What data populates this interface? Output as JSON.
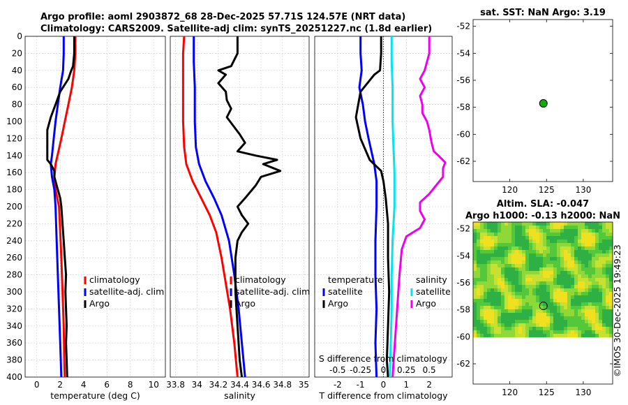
{
  "header": {
    "line1": "Argo profile: aoml 2903872_68 28-Dec-2025 57.71S 124.57E (NRT data)",
    "line2": "Climatology: CARS2009. Satellite-adj clim: synTS_20251227.nc (1.8d earlier)"
  },
  "sst_title": "sat. SST: NaN Argo: 3.19",
  "sla_title1": "Altim. SLA: -0.047",
  "sla_title2": "Argo h1000: -0.13 h2000: NaN",
  "watermark": "©IMOS 30-Dec-2025 19:49:23",
  "colors": {
    "clim": "#ff0000",
    "sat": "#0000ff",
    "argo": "#000000",
    "sat_s": "#00e5ee",
    "argo_s": "#ee00ee"
  },
  "icons": {
    "legend_mark": "short-vertical-line",
    "float_marker": "green-circle"
  },
  "chart_data": [
    {
      "type": "line",
      "name": "temperature",
      "xlabel": "temperature (deg C)",
      "ylabel": "",
      "xlim": [
        -1,
        11
      ],
      "ylim": [
        400,
        0
      ],
      "xticks": [
        0,
        2,
        4,
        6,
        8,
        10
      ],
      "yticks": [
        0,
        20,
        40,
        60,
        80,
        100,
        120,
        140,
        160,
        180,
        200,
        220,
        240,
        260,
        280,
        300,
        320,
        340,
        360,
        380,
        400
      ],
      "legend": [
        "climatology",
        "satellite-adj. clim",
        "Argo"
      ],
      "legend_position": "bottom-right",
      "series": [
        {
          "name": "climatology",
          "color": "#ff0000",
          "points": [
            [
              3.3,
              0
            ],
            [
              3.3,
              20
            ],
            [
              3.2,
              40
            ],
            [
              3.0,
              60
            ],
            [
              2.7,
              80
            ],
            [
              2.4,
              100
            ],
            [
              2.1,
              120
            ],
            [
              1.6,
              150
            ],
            [
              1.5,
              165
            ],
            [
              1.6,
              180
            ],
            [
              1.9,
              200
            ],
            [
              2.0,
              230
            ],
            [
              2.1,
              260
            ],
            [
              2.2,
              300
            ],
            [
              2.3,
              340
            ],
            [
              2.35,
              380
            ],
            [
              2.4,
              400
            ]
          ]
        },
        {
          "name": "satellite-adj. clim",
          "color": "#0000ff",
          "points": [
            [
              2.3,
              0
            ],
            [
              2.3,
              20
            ],
            [
              2.25,
              40
            ],
            [
              2.0,
              60
            ],
            [
              1.8,
              80
            ],
            [
              1.6,
              100
            ],
            [
              1.45,
              120
            ],
            [
              1.3,
              140
            ],
            [
              1.2,
              150
            ],
            [
              1.3,
              165
            ],
            [
              1.5,
              180
            ],
            [
              1.6,
              200
            ],
            [
              1.7,
              240
            ],
            [
              1.8,
              280
            ],
            [
              1.9,
              320
            ],
            [
              2.0,
              360
            ],
            [
              2.1,
              400
            ]
          ]
        },
        {
          "name": "Argo",
          "color": "#000000",
          "points": [
            [
              3.2,
              0
            ],
            [
              3.2,
              20
            ],
            [
              3.1,
              35
            ],
            [
              2.9,
              42
            ],
            [
              2.7,
              50
            ],
            [
              2.0,
              65
            ],
            [
              1.6,
              80
            ],
            [
              1.2,
              95
            ],
            [
              0.9,
              110
            ],
            [
              0.9,
              130
            ],
            [
              0.9,
              145
            ],
            [
              1.2,
              150
            ],
            [
              1.5,
              158
            ],
            [
              1.5,
              165
            ],
            [
              1.7,
              175
            ],
            [
              2.0,
              190
            ],
            [
              2.1,
              200
            ],
            [
              2.2,
              220
            ],
            [
              2.3,
              240
            ],
            [
              2.4,
              260
            ],
            [
              2.5,
              280
            ],
            [
              2.45,
              300
            ],
            [
              2.5,
              320
            ],
            [
              2.55,
              340
            ],
            [
              2.5,
              360
            ],
            [
              2.55,
              380
            ],
            [
              2.6,
              400
            ]
          ]
        }
      ]
    },
    {
      "type": "line",
      "name": "salinity",
      "xlabel": "salinity",
      "xlim": [
        33.75,
        35.05
      ],
      "ylim": [
        400,
        0
      ],
      "xticks": [
        33.8,
        34,
        34.2,
        34.4,
        34.6,
        34.8,
        35
      ],
      "xticklabels": [
        "33.8",
        "34",
        "34.2",
        "34.4",
        "34.6",
        "34.8",
        "35"
      ],
      "legend": [
        "climatology",
        "satellite-adj. clim",
        "Argo"
      ],
      "legend_position": "bottom-right",
      "series": [
        {
          "name": "climatology",
          "color": "#ff0000",
          "points": [
            [
              33.88,
              0
            ],
            [
              33.87,
              20
            ],
            [
              33.87,
              60
            ],
            [
              33.87,
              100
            ],
            [
              33.88,
              130
            ],
            [
              33.9,
              150
            ],
            [
              33.96,
              170
            ],
            [
              34.04,
              190
            ],
            [
              34.12,
              210
            ],
            [
              34.18,
              230
            ],
            [
              34.23,
              260
            ],
            [
              34.27,
              290
            ],
            [
              34.31,
              320
            ],
            [
              34.35,
              360
            ],
            [
              34.38,
              400
            ]
          ]
        },
        {
          "name": "satellite-adj. clim",
          "color": "#0000ff",
          "points": [
            [
              33.97,
              0
            ],
            [
              33.97,
              30
            ],
            [
              33.98,
              60
            ],
            [
              33.98,
              100
            ],
            [
              33.99,
              130
            ],
            [
              34.02,
              150
            ],
            [
              34.08,
              170
            ],
            [
              34.16,
              190
            ],
            [
              34.23,
              210
            ],
            [
              34.3,
              240
            ],
            [
              34.35,
              280
            ],
            [
              34.39,
              320
            ],
            [
              34.42,
              360
            ],
            [
              34.45,
              400
            ]
          ]
        },
        {
          "name": "Argo",
          "color": "#000000",
          "points": [
            [
              34.38,
              0
            ],
            [
              34.38,
              20
            ],
            [
              34.32,
              35
            ],
            [
              34.2,
              40
            ],
            [
              34.27,
              45
            ],
            [
              34.2,
              55
            ],
            [
              34.27,
              65
            ],
            [
              34.28,
              75
            ],
            [
              34.32,
              85
            ],
            [
              34.28,
              95
            ],
            [
              34.34,
              105
            ],
            [
              34.4,
              115
            ],
            [
              34.45,
              125
            ],
            [
              34.38,
              135
            ],
            [
              34.55,
              140
            ],
            [
              34.75,
              145
            ],
            [
              34.62,
              150
            ],
            [
              34.78,
              158
            ],
            [
              34.6,
              165
            ],
            [
              34.55,
              175
            ],
            [
              34.45,
              190
            ],
            [
              34.38,
              200
            ],
            [
              34.42,
              210
            ],
            [
              34.48,
              220
            ],
            [
              34.42,
              230
            ],
            [
              34.38,
              240
            ],
            [
              34.36,
              260
            ],
            [
              34.36,
              300
            ],
            [
              34.38,
              340
            ],
            [
              34.4,
              380
            ],
            [
              34.42,
              400
            ]
          ]
        }
      ]
    },
    {
      "type": "line",
      "name": "difference",
      "xlabel": "T difference from climatology",
      "xlabel_top": "S difference from climatology",
      "xlim": [
        -3,
        3
      ],
      "ylim": [
        400,
        0
      ],
      "xticks": [
        -2,
        -1,
        0,
        1,
        2
      ],
      "s_ticklabels": [
        "-0.5",
        "-0.25",
        "0",
        "0.25",
        "0.5"
      ],
      "s_scale": 4,
      "legend_left": {
        "title": "temperature",
        "items": [
          "satellite",
          "Argo"
        ]
      },
      "legend_right": {
        "title": "salinity",
        "items": [
          "satellite",
          "Argo"
        ]
      },
      "series": [
        {
          "name": "satellite T",
          "color": "#0000ff",
          "points": [
            [
              -1.0,
              0
            ],
            [
              -1.0,
              20
            ],
            [
              -0.95,
              40
            ],
            [
              -1.05,
              60
            ],
            [
              -0.9,
              80
            ],
            [
              -0.8,
              100
            ],
            [
              -0.65,
              120
            ],
            [
              -0.4,
              150
            ],
            [
              -0.3,
              170
            ],
            [
              -0.3,
              200
            ],
            [
              -0.35,
              240
            ],
            [
              -0.35,
              280
            ],
            [
              -0.3,
              320
            ],
            [
              -0.35,
              360
            ],
            [
              -0.3,
              400
            ]
          ]
        },
        {
          "name": "Argo T",
          "color": "#000000",
          "points": [
            [
              -0.1,
              0
            ],
            [
              -0.1,
              20
            ],
            [
              -0.15,
              40
            ],
            [
              -0.4,
              45
            ],
            [
              -1.0,
              65
            ],
            [
              -1.1,
              80
            ],
            [
              -1.2,
              95
            ],
            [
              -1.0,
              120
            ],
            [
              -0.6,
              145
            ],
            [
              -0.1,
              158
            ],
            [
              0,
              170
            ],
            [
              0.1,
              190
            ],
            [
              0.2,
              220
            ],
            [
              0.2,
              260
            ],
            [
              0.25,
              300
            ],
            [
              0.2,
              340
            ],
            [
              0.15,
              380
            ],
            [
              0.2,
              400
            ]
          ]
        },
        {
          "name": "satellite S",
          "color": "#00e5ee",
          "points": [
            [
              0.36,
              0
            ],
            [
              0.36,
              30
            ],
            [
              0.4,
              60
            ],
            [
              0.4,
              100
            ],
            [
              0.44,
              130
            ],
            [
              0.48,
              160
            ],
            [
              0.48,
              200
            ],
            [
              0.4,
              240
            ],
            [
              0.36,
              280
            ],
            [
              0.36,
              320
            ],
            [
              0.32,
              360
            ],
            [
              0.28,
              400
            ]
          ]
        },
        {
          "name": "Argo S",
          "color": "#ee00ee",
          "points": [
            [
              2.0,
              0
            ],
            [
              2.0,
              20
            ],
            [
              1.8,
              40
            ],
            [
              1.6,
              50
            ],
            [
              1.8,
              60
            ],
            [
              1.6,
              70
            ],
            [
              1.7,
              80
            ],
            [
              1.7,
              90
            ],
            [
              1.9,
              100
            ],
            [
              2.0,
              110
            ],
            [
              2.1,
              125
            ],
            [
              2.2,
              135
            ],
            [
              2.4,
              140
            ],
            [
              2.7,
              148
            ],
            [
              2.6,
              155
            ],
            [
              2.6,
              165
            ],
            [
              2.3,
              175
            ],
            [
              2.0,
              185
            ],
            [
              1.6,
              195
            ],
            [
              1.6,
              205
            ],
            [
              1.8,
              215
            ],
            [
              1.6,
              225
            ],
            [
              1.0,
              235
            ],
            [
              0.8,
              250
            ],
            [
              0.7,
              280
            ],
            [
              0.6,
              320
            ],
            [
              0.5,
              360
            ],
            [
              0.4,
              400
            ]
          ]
        }
      ]
    },
    {
      "type": "scatter",
      "name": "sst_map",
      "xlim": [
        115,
        134
      ],
      "ylim": [
        -63.5,
        -51.5
      ],
      "xticks": [
        120,
        125,
        130
      ],
      "yticks": [
        -52,
        -54,
        -56,
        -58,
        -60,
        -62
      ],
      "marker": {
        "lon": 124.57,
        "lat": -57.71,
        "color": "#11aa11"
      }
    },
    {
      "type": "heatmap",
      "name": "sla_map",
      "xlim": [
        115,
        134
      ],
      "ylim": [
        -63.5,
        -51.5
      ],
      "data_lat_range": [
        -60,
        -51.5
      ],
      "xticks": [
        120,
        125,
        130
      ],
      "yticks": [
        -52,
        -54,
        -56,
        -58,
        -60,
        -62
      ],
      "marker": {
        "lon": 124.57,
        "lat": -57.71
      }
    }
  ]
}
